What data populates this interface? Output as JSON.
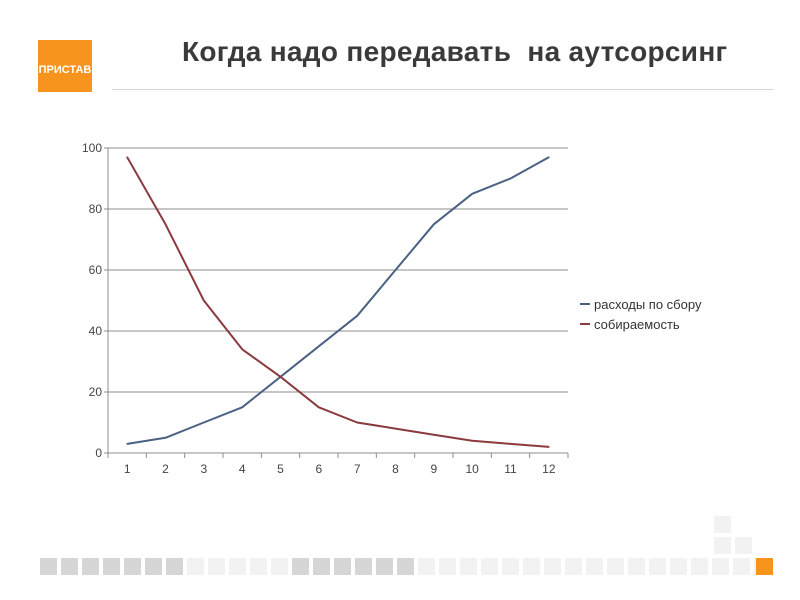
{
  "logo": {
    "text": "ПРИСТАВ",
    "color": "#f7941d"
  },
  "title": "Когда надо передавать  на аутсорсинг",
  "chart_data": {
    "type": "line",
    "x": [
      1,
      2,
      3,
      4,
      5,
      6,
      7,
      8,
      9,
      10,
      11,
      12
    ],
    "x_tick_labels": [
      "1",
      "2",
      "3",
      "4",
      "5",
      "6",
      "7",
      "8",
      "9",
      "10",
      "11",
      "12"
    ],
    "y_tick_labels": [
      "0",
      "20",
      "40",
      "60",
      "80",
      "100"
    ],
    "ylim": [
      0,
      100
    ],
    "grid": true,
    "legend_position": "right",
    "series": [
      {
        "name": "расходы по сбору",
        "color": "#4a6184",
        "values": [
          3,
          5,
          10,
          15,
          25,
          35,
          45,
          60,
          75,
          85,
          90,
          97
        ]
      },
      {
        "name": "собираемость",
        "color": "#8b3a3e",
        "values": [
          97,
          75,
          50,
          34,
          25,
          15,
          10,
          8,
          6,
          4,
          3,
          2
        ]
      }
    ]
  },
  "decor": {
    "accent_color": "#f7941d",
    "square_light": "#f2f2f2",
    "square_dark": "#d6d6d6"
  }
}
